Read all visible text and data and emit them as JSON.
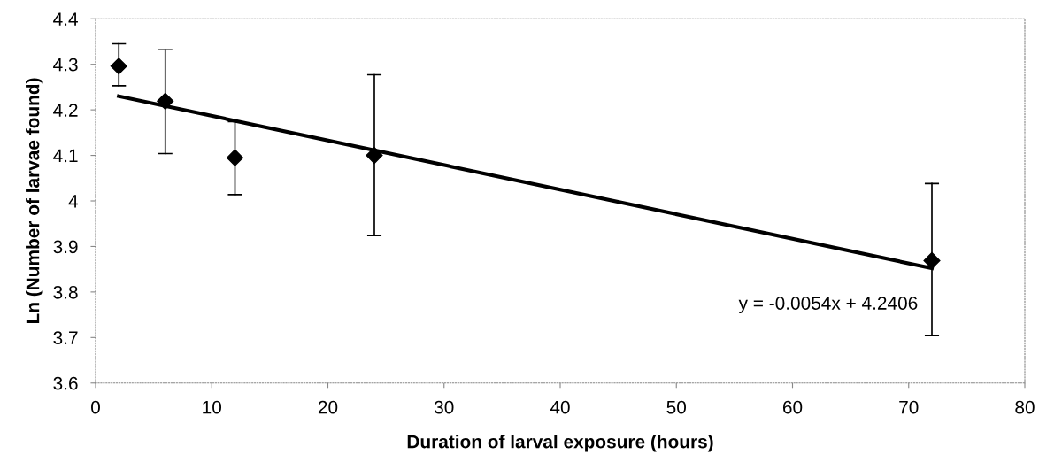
{
  "chart_data": {
    "type": "scatter",
    "xlabel": "Duration of larval exposure (hours)",
    "ylabel": "Ln (Number of larvae found)",
    "x": [
      2,
      6,
      12,
      24,
      72
    ],
    "series": [
      {
        "color": "#000000",
        "marker": "diamond",
        "values": [
          4.296,
          4.219,
          4.095,
          4.1,
          3.869
        ],
        "errors": [
          [
            4.253,
            4.345
          ],
          [
            4.104,
            4.332
          ],
          [
            4.014,
            4.174
          ],
          [
            3.924,
            4.277
          ],
          [
            3.704,
            4.038
          ]
        ]
      },
      {
        "type": "line",
        "color": "#000000",
        "marker": "none",
        "line_style": "solid",
        "x": [
          2,
          72
        ],
        "values": [
          4.23,
          3.852
        ]
      }
    ],
    "annotations": [
      "y = -0.0054x + 4.2406"
    ],
    "xlim": [
      0,
      80
    ],
    "xticks": [
      0,
      10,
      20,
      30,
      40,
      50,
      60,
      70,
      80
    ],
    "ylim": [
      3.6,
      4.4
    ],
    "yticks": [
      3.6,
      3.7,
      3.8,
      3.9,
      4,
      4.1,
      4.2,
      4.3,
      4.4
    ],
    "grid": false,
    "legend": false
  }
}
